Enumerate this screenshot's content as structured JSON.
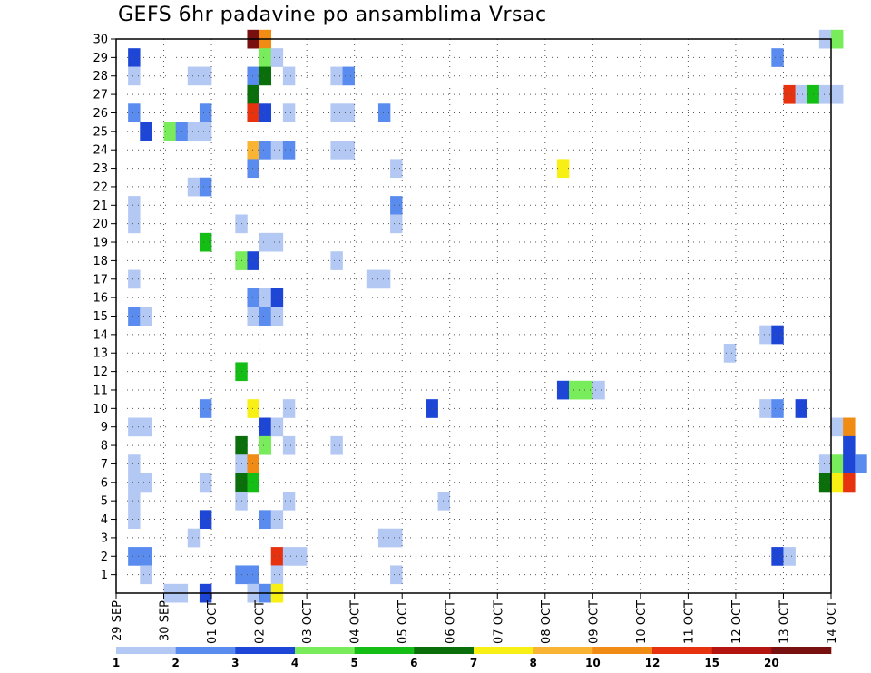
{
  "chart_data": {
    "type": "heatmap",
    "title": "GEFS 6hr padavine po ansamblima Vrsac",
    "xlabel": "",
    "ylabel": "",
    "x_ticks": [
      "29 SEP",
      "30 SEP",
      "01 OCT",
      "02 OCT",
      "03 OCT",
      "04 OCT",
      "05 OCT",
      "06 OCT",
      "07 OCT",
      "08 OCT",
      "09 OCT",
      "10 OCT",
      "11 OCT",
      "12 OCT",
      "13 OCT",
      "14 OCT"
    ],
    "x_range": [
      "29 SEP 00Z",
      "14 OCT 00Z"
    ],
    "x_step_hours": 6,
    "y_ticks": [
      1,
      2,
      3,
      4,
      5,
      6,
      7,
      8,
      9,
      10,
      11,
      12,
      13,
      14,
      15,
      16,
      17,
      18,
      19,
      20,
      21,
      22,
      23,
      24,
      25,
      26,
      27,
      28,
      29,
      30
    ],
    "y_range": [
      0,
      30
    ],
    "grid": true,
    "legend": {
      "placement": "bottom",
      "labels": [
        "1",
        "2",
        "3",
        "4",
        "5",
        "6",
        "7",
        "8",
        "10",
        "12",
        "15",
        "20"
      ],
      "colors": [
        "#b4c8f4",
        "#5a8cf0",
        "#1e46d6",
        "#78ec5a",
        "#14be14",
        "#0a6e0a",
        "#f8f014",
        "#f8b432",
        "#f08c14",
        "#e6320f",
        "#b4140f",
        "#781010"
      ]
    },
    "cells": [
      [
        30,
        11,
        "#781010"
      ],
      [
        30,
        12,
        "#f08c14"
      ],
      [
        30,
        59,
        "#b4c8f4"
      ],
      [
        30,
        60,
        "#78ec5a"
      ],
      [
        30,
        69,
        "#1e46d6"
      ],
      [
        29,
        1,
        "#1e46d6"
      ],
      [
        29,
        12,
        "#78ec5a"
      ],
      [
        29,
        13,
        "#b4c8f4"
      ],
      [
        29,
        55,
        "#5a8cf0"
      ],
      [
        28,
        1,
        "#b4c8f4"
      ],
      [
        28,
        6,
        "#b4c8f4"
      ],
      [
        28,
        7,
        "#b4c8f4"
      ],
      [
        28,
        11,
        "#5a8cf0"
      ],
      [
        28,
        12,
        "#0a6e0a"
      ],
      [
        28,
        14,
        "#b4c8f4"
      ],
      [
        28,
        18,
        "#b4c8f4"
      ],
      [
        28,
        19,
        "#5a8cf0"
      ],
      [
        27,
        11,
        "#0a6e0a"
      ],
      [
        27,
        56,
        "#e6320f"
      ],
      [
        27,
        57,
        "#b4c8f4"
      ],
      [
        27,
        58,
        "#14be14"
      ],
      [
        27,
        59,
        "#b4c8f4"
      ],
      [
        27,
        60,
        "#b4c8f4"
      ],
      [
        26,
        1,
        "#5a8cf0"
      ],
      [
        26,
        7,
        "#5a8cf0"
      ],
      [
        26,
        11,
        "#e6320f"
      ],
      [
        26,
        12,
        "#1e46d6"
      ],
      [
        26,
        14,
        "#b4c8f4"
      ],
      [
        26,
        18,
        "#b4c8f4"
      ],
      [
        26,
        19,
        "#b4c8f4"
      ],
      [
        26,
        22,
        "#5a8cf0"
      ],
      [
        25,
        2,
        "#1e46d6"
      ],
      [
        25,
        4,
        "#78ec5a"
      ],
      [
        25,
        5,
        "#5a8cf0"
      ],
      [
        25,
        6,
        "#b4c8f4"
      ],
      [
        25,
        7,
        "#b4c8f4"
      ],
      [
        24,
        11,
        "#f8b432"
      ],
      [
        24,
        12,
        "#5a8cf0"
      ],
      [
        24,
        13,
        "#b4c8f4"
      ],
      [
        24,
        14,
        "#5a8cf0"
      ],
      [
        24,
        18,
        "#b4c8f4"
      ],
      [
        24,
        19,
        "#b4c8f4"
      ],
      [
        23,
        11,
        "#5a8cf0"
      ],
      [
        23,
        23,
        "#b4c8f4"
      ],
      [
        23,
        37,
        "#f8f014"
      ],
      [
        22,
        6,
        "#b4c8f4"
      ],
      [
        22,
        7,
        "#5a8cf0"
      ],
      [
        22,
        71,
        "#b4c8f4"
      ],
      [
        21,
        1,
        "#b4c8f4"
      ],
      [
        21,
        23,
        "#5a8cf0"
      ],
      [
        21,
        69,
        "#b4c8f4"
      ],
      [
        20,
        1,
        "#b4c8f4"
      ],
      [
        20,
        10,
        "#b4c8f4"
      ],
      [
        20,
        23,
        "#b4c8f4"
      ],
      [
        19,
        7,
        "#14be14"
      ],
      [
        19,
        12,
        "#b4c8f4"
      ],
      [
        19,
        13,
        "#b4c8f4"
      ],
      [
        18,
        10,
        "#78ec5a"
      ],
      [
        18,
        11,
        "#1e46d6"
      ],
      [
        18,
        18,
        "#b4c8f4"
      ],
      [
        17,
        1,
        "#b4c8f4"
      ],
      [
        17,
        21,
        "#b4c8f4"
      ],
      [
        17,
        22,
        "#b4c8f4"
      ],
      [
        16,
        11,
        "#5a8cf0"
      ],
      [
        16,
        12,
        "#b4c8f4"
      ],
      [
        16,
        13,
        "#1e46d6"
      ],
      [
        15,
        1,
        "#5a8cf0"
      ],
      [
        15,
        2,
        "#b4c8f4"
      ],
      [
        15,
        11,
        "#b4c8f4"
      ],
      [
        15,
        12,
        "#5a8cf0"
      ],
      [
        15,
        13,
        "#b4c8f4"
      ],
      [
        14,
        54,
        "#b4c8f4"
      ],
      [
        14,
        55,
        "#1e46d6"
      ],
      [
        13,
        51,
        "#b4c8f4"
      ],
      [
        12,
        10,
        "#14be14"
      ],
      [
        11,
        37,
        "#1e46d6"
      ],
      [
        11,
        38,
        "#78ec5a"
      ],
      [
        11,
        39,
        "#78ec5a"
      ],
      [
        11,
        40,
        "#b4c8f4"
      ],
      [
        10,
        7,
        "#5a8cf0"
      ],
      [
        10,
        11,
        "#f8f014"
      ],
      [
        10,
        14,
        "#b4c8f4"
      ],
      [
        10,
        26,
        "#1e46d6"
      ],
      [
        10,
        54,
        "#b4c8f4"
      ],
      [
        10,
        55,
        "#5a8cf0"
      ],
      [
        10,
        57,
        "#1e46d6"
      ],
      [
        10,
        66,
        "#5a8cf0"
      ],
      [
        10,
        67,
        "#1e46d6"
      ],
      [
        10,
        69,
        "#b4c8f4"
      ],
      [
        10,
        70,
        "#5a8cf0"
      ],
      [
        10,
        71,
        "#f8f014"
      ],
      [
        9,
        1,
        "#b4c8f4"
      ],
      [
        9,
        2,
        "#b4c8f4"
      ],
      [
        9,
        12,
        "#1e46d6"
      ],
      [
        9,
        13,
        "#b4c8f4"
      ],
      [
        9,
        60,
        "#b4c8f4"
      ],
      [
        9,
        61,
        "#f08c14"
      ],
      [
        9,
        66,
        "#5a8cf0"
      ],
      [
        9,
        67,
        "#14be14"
      ],
      [
        9,
        68,
        "#5a8cf0"
      ],
      [
        9,
        69,
        "#b4c8f4"
      ],
      [
        8,
        10,
        "#0a6e0a"
      ],
      [
        8,
        12,
        "#78ec5a"
      ],
      [
        8,
        14,
        "#b4c8f4"
      ],
      [
        8,
        18,
        "#b4c8f4"
      ],
      [
        8,
        61,
        "#1e46d6"
      ],
      [
        8,
        64,
        "#78ec5a"
      ],
      [
        8,
        65,
        "#14be14"
      ],
      [
        8,
        66,
        "#0a6e0a"
      ],
      [
        8,
        67,
        "#5a8cf0"
      ],
      [
        7,
        1,
        "#b4c8f4"
      ],
      [
        7,
        10,
        "#b4c8f4"
      ],
      [
        7,
        11,
        "#f08c14"
      ],
      [
        7,
        59,
        "#b4c8f4"
      ],
      [
        7,
        60,
        "#78ec5a"
      ],
      [
        7,
        61,
        "#1e46d6"
      ],
      [
        7,
        62,
        "#5a8cf0"
      ],
      [
        6,
        1,
        "#b4c8f4"
      ],
      [
        6,
        2,
        "#b4c8f4"
      ],
      [
        6,
        7,
        "#b4c8f4"
      ],
      [
        6,
        10,
        "#0a6e0a"
      ],
      [
        6,
        11,
        "#14be14"
      ],
      [
        6,
        59,
        "#0a6e0a"
      ],
      [
        6,
        60,
        "#f8f014"
      ],
      [
        6,
        61,
        "#e6320f"
      ],
      [
        5,
        1,
        "#b4c8f4"
      ],
      [
        5,
        10,
        "#b4c8f4"
      ],
      [
        5,
        14,
        "#b4c8f4"
      ],
      [
        5,
        27,
        "#b4c8f4"
      ],
      [
        4,
        1,
        "#b4c8f4"
      ],
      [
        4,
        7,
        "#1e46d6"
      ],
      [
        4,
        12,
        "#5a8cf0"
      ],
      [
        4,
        13,
        "#b4c8f4"
      ],
      [
        3,
        6,
        "#b4c8f4"
      ],
      [
        3,
        22,
        "#b4c8f4"
      ],
      [
        3,
        23,
        "#b4c8f4"
      ],
      [
        2,
        1,
        "#5a8cf0"
      ],
      [
        2,
        2,
        "#5a8cf0"
      ],
      [
        2,
        13,
        "#e6320f"
      ],
      [
        2,
        14,
        "#b4c8f4"
      ],
      [
        2,
        15,
        "#b4c8f4"
      ],
      [
        2,
        55,
        "#1e46d6"
      ],
      [
        2,
        56,
        "#b4c8f4"
      ],
      [
        1,
        2,
        "#b4c8f4"
      ],
      [
        1,
        10,
        "#5a8cf0"
      ],
      [
        1,
        11,
        "#5a8cf0"
      ],
      [
        1,
        13,
        "#b4c8f4"
      ],
      [
        1,
        23,
        "#b4c8f4"
      ],
      [
        0,
        4,
        "#b4c8f4"
      ],
      [
        0,
        5,
        "#b4c8f4"
      ],
      [
        0,
        7,
        "#1e46d6"
      ],
      [
        0,
        11,
        "#b4c8f4"
      ],
      [
        0,
        12,
        "#5a8cf0"
      ],
      [
        0,
        13,
        "#f8f014"
      ],
      [
        0,
        68,
        "#b4c8f4"
      ],
      [
        0,
        69,
        "#b4c8f4"
      ]
    ]
  }
}
